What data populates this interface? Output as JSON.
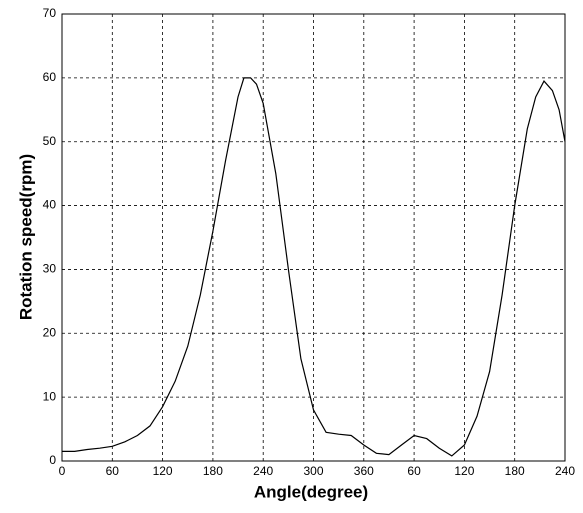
{
  "chart_data": {
    "type": "line",
    "x_label": "Angle(degree)",
    "y_label": "Rotation speed(rpm)",
    "x": [
      0,
      15,
      30,
      45,
      60,
      75,
      90,
      105,
      120,
      135,
      150,
      165,
      180,
      195,
      210,
      217,
      225,
      232,
      240,
      255,
      270,
      285,
      300,
      315,
      330,
      345,
      360,
      375,
      390,
      405,
      420,
      435,
      450,
      465,
      480,
      495,
      510,
      525,
      540,
      555,
      565,
      575,
      585,
      593,
      600
    ],
    "values": [
      1.5,
      1.5,
      1.8,
      2,
      2.3,
      3,
      4,
      5.5,
      8.5,
      12.5,
      18,
      26,
      36,
      47,
      57,
      60,
      60,
      59,
      56,
      45,
      30,
      16,
      8,
      4.5,
      4.2,
      4,
      2.5,
      1.2,
      1,
      2.5,
      4,
      3.5,
      2,
      0.8,
      2.5,
      7,
      14,
      26,
      40,
      52,
      57,
      59.5,
      58,
      55,
      50
    ],
    "color": "#000000",
    "xlim": [
      0,
      600
    ],
    "xticks": [
      0,
      60,
      120,
      180,
      240,
      300,
      360,
      {
        "value": 420,
        "label": "60"
      },
      {
        "value": 480,
        "label": "120"
      },
      {
        "value": 540,
        "label": "180"
      },
      {
        "value": 600,
        "label": "240"
      }
    ],
    "ylim": [
      0,
      70
    ],
    "yticks": [
      0,
      10,
      20,
      30,
      40,
      50,
      60,
      70
    ],
    "grid": true
  }
}
